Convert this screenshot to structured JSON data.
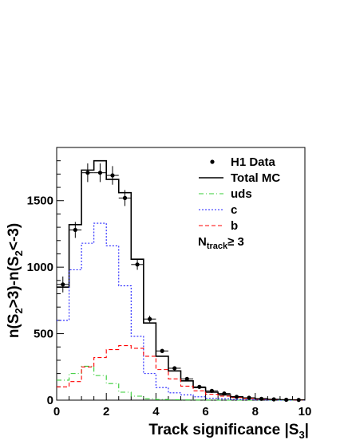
{
  "chart_data": {
    "type": "histogram",
    "xlabel": "Track significance |S",
    "xlabel_sub": "3",
    "xlabel_tail": "|",
    "ylabel_parts": [
      "n(S",
      "2",
      ">3)-n(S",
      "2",
      "<-3)"
    ],
    "xlim": [
      0,
      10
    ],
    "ylim": [
      0,
      1900
    ],
    "x_ticks": [
      0,
      2,
      4,
      6,
      8,
      10
    ],
    "x_tick_labels": [
      "0",
      "2",
      "4",
      "6",
      "8",
      "10"
    ],
    "y_ticks": [
      0,
      500,
      1000,
      1500
    ],
    "y_tick_labels": [
      "0",
      "500",
      "1000",
      "1500"
    ],
    "bin_edges": [
      0,
      0.5,
      1,
      1.5,
      2,
      2.5,
      3,
      3.5,
      4,
      4.5,
      5,
      5.5,
      6,
      6.5,
      7,
      7.5,
      8,
      8.5,
      9,
      9.5,
      10
    ],
    "series": [
      {
        "name": "H1 Data",
        "style": "points",
        "color": "#000000",
        "values": [
          870,
          1280,
          1710,
          1710,
          1690,
          1520,
          1020,
          610,
          370,
          240,
          160,
          100,
          70,
          50,
          25,
          18,
          10,
          6,
          3,
          2
        ],
        "errors": [
          60,
          60,
          70,
          70,
          70,
          60,
          40,
          25,
          15,
          12,
          10,
          8,
          7,
          6,
          5,
          4,
          3,
          3,
          2,
          2
        ]
      },
      {
        "name": "Total MC",
        "style": "solid",
        "color": "#000000",
        "values": [
          850,
          1320,
          1730,
          1800,
          1660,
          1560,
          1060,
          580,
          330,
          220,
          145,
          95,
          60,
          40,
          25,
          15,
          10,
          6,
          3,
          2
        ]
      },
      {
        "name": "uds",
        "style": "dashdot",
        "color": "#33cc33",
        "values": [
          150,
          200,
          255,
          185,
          125,
          60,
          30,
          10,
          5,
          3,
          2,
          1,
          1,
          0,
          0,
          0,
          0,
          0,
          0,
          0
        ]
      },
      {
        "name": "c",
        "style": "dotted",
        "color": "#2222ff",
        "values": [
          600,
          980,
          1180,
          1330,
          1160,
          860,
          480,
          200,
          95,
          55,
          40,
          25,
          15,
          10,
          5,
          3,
          2,
          1,
          0,
          0
        ]
      },
      {
        "name": "b",
        "style": "dashed",
        "color": "#ff0000",
        "values": [
          100,
          140,
          250,
          320,
          380,
          410,
          390,
          330,
          230,
          160,
          105,
          70,
          45,
          30,
          20,
          12,
          8,
          5,
          3,
          2
        ]
      }
    ],
    "annotation": {
      "main": "N",
      "sub": "track",
      "tail": "≥ 3"
    },
    "legend_position": "top-right"
  }
}
